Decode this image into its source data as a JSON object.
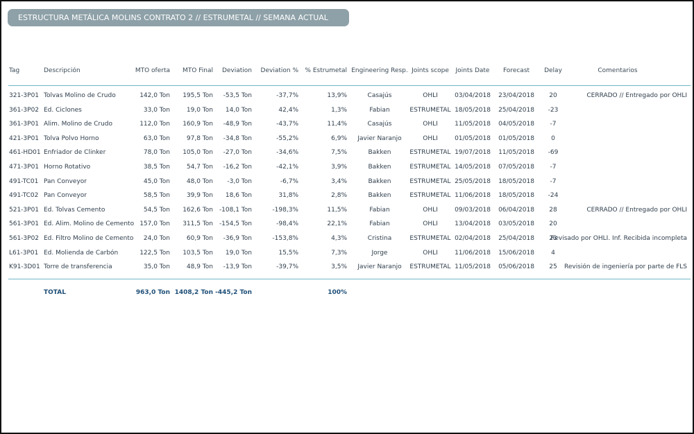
{
  "header": {
    "title": "ESTRUCTURA METÁLICA MOLINS CONTRATO 2 // ESTRUMETAL // SEMANA ACTUAL"
  },
  "table": {
    "columns": [
      "Tag",
      "Descripción",
      "MTO oferta",
      "MTO Final",
      "Deviation",
      "Deviation %",
      "% Estrumetal",
      "Engineering Resp.",
      "Joints scope",
      "Joints Date",
      "Forecast",
      "Delay",
      "Comentarios"
    ],
    "rows": [
      [
        "321-3P01",
        "Tolvas Molino de Crudo",
        "142,0 Ton",
        "195,5 Ton",
        "-53,5 Ton",
        "-37,7%",
        "13,9%",
        "Casajús",
        "OHLI",
        "03/04/2018",
        "23/04/2018",
        "20",
        "CERRADO // Entregado por OHLI"
      ],
      [
        "361-3P02",
        "Ed. Ciclones",
        "33,0 Ton",
        "19,0 Ton",
        "14,0 Ton",
        "42,4%",
        "1,3%",
        "Fabian",
        "ESTRUMETAL",
        "18/05/2018",
        "25/04/2018",
        "-23"
      ],
      [
        "361-3P01",
        "Alim. Molino de Crudo",
        "112,0 Ton",
        "160,9 Ton",
        "-48,9 Ton",
        "-43,7%",
        "11,4%",
        "Casajús",
        "OHLI",
        "11/05/2018",
        "04/05/2018",
        "-7"
      ],
      [
        "421-3P01",
        "Tolva Polvo Horno",
        "63,0 Ton",
        "97,8 Ton",
        "-34,8 Ton",
        "-55,2%",
        "6,9%",
        "Javier Naranjo",
        "OHLI",
        "01/05/2018",
        "01/05/2018",
        "0"
      ],
      [
        "461-HD01",
        "Enfriador de Clinker",
        "78,0 Ton",
        "105,0 Ton",
        "-27,0 Ton",
        "-34,6%",
        "7,5%",
        "Bakken",
        "ESTRUMETAL",
        "19/07/2018",
        "11/05/2018",
        "-69"
      ],
      [
        "471-3P01",
        "Horno Rotativo",
        "38,5 Ton",
        "54,7 Ton",
        "-16,2 Ton",
        "-42,1%",
        "3,9%",
        "Bakken",
        "ESTRUMETAL",
        "14/05/2018",
        "07/05/2018",
        "-7"
      ],
      [
        "491-TC01",
        "Pan Conveyor",
        "45,0 Ton",
        "48,0 Ton",
        "-3,0 Ton",
        "-6,7%",
        "3,4%",
        "Bakken",
        "ESTRUMETAL",
        "25/05/2018",
        "18/05/2018",
        "-7"
      ],
      [
        "491-TC02",
        "Pan Conveyor",
        "58,5 Ton",
        "39,9 Ton",
        "18,6 Ton",
        "31,8%",
        "2,8%",
        "Bakken",
        "ESTRUMETAL",
        "11/06/2018",
        "18/05/2018",
        "-24"
      ],
      [
        "521-3P01",
        "Ed. Tolvas Cemento",
        "54,5 Ton",
        "162,6 Ton",
        "-108,1 Ton",
        "-198,3%",
        "11,5%",
        "Fabian",
        "OHLI",
        "09/03/2018",
        "06/04/2018",
        "28",
        "CERRADO // Entregado por OHLI"
      ],
      [
        "561-3P01",
        "Ed. Alim. Molino de Cemento",
        "157,0 Ton",
        "311,5 Ton",
        "-154,5 Ton",
        "-98,4%",
        "22,1%",
        "Fabian",
        "OHLI",
        "13/04/2018",
        "03/05/2018",
        "20"
      ],
      [
        "561-3P02",
        "Ed. Filtro Molino de Cemento",
        "24,0 Ton",
        "60,9 Ton",
        "-36,9 Ton",
        "-153,8%",
        "4,3%",
        "Cristina",
        "ESTRUMETAL",
        "02/04/2018",
        "25/04/2018",
        "23",
        "Revisado por OHLI. Inf. Recibida incompleta"
      ],
      [
        "L61-3P01",
        "Ed. Molienda de Carbón",
        "122,5 Ton",
        "103,5 Ton",
        "19,0 Ton",
        "15,5%",
        "7,3%",
        "Jorge",
        "OHLI",
        "11/06/2018",
        "15/06/2018",
        "4"
      ],
      [
        "K91-3D01",
        "Torre de transferencia",
        "35,0 Ton",
        "48,9 Ton",
        "-13,9 Ton",
        "-39,7%",
        "3,5%",
        "Javier Naranjo",
        "ESTRUMETAL",
        "11/05/2018",
        "05/06/2018",
        "25",
        "Revisión de ingeniería por parte de FLS"
      ]
    ],
    "total": {
      "label": "TOTAL",
      "mto_oferta": "963,0 Ton",
      "mto_final": "1408,2 Ton",
      "deviation": "-445,2 Ton",
      "estrumetal": "100%"
    }
  }
}
